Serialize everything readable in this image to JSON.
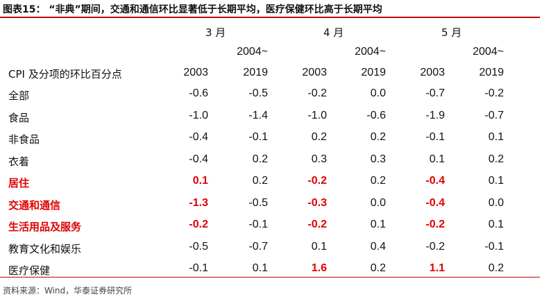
{
  "title": "图表15：  “非典”期间，交通和通信环比显著低于长期平均，医疗保健环比高于长期平均",
  "source": "资料来源：Wind，华泰证券研究所",
  "months": [
    "3 月",
    "4 月",
    "5 月"
  ],
  "header": {
    "row_label": "CPI 及分项的环比百分点",
    "col_a": "2003",
    "col_b_top": "2004~",
    "col_b": "2019"
  },
  "rows": [
    {
      "label": "全部",
      "v": [
        "-0.6",
        "-0.5",
        "-0.2",
        "0.0",
        "-0.7",
        "-0.2"
      ],
      "hl": false
    },
    {
      "label": "食品",
      "v": [
        "-1.0",
        "-1.4",
        "-1.0",
        "-0.6",
        "-1.9",
        "-0.7"
      ],
      "hl": false
    },
    {
      "label": "非食品",
      "v": [
        "-0.4",
        "-0.1",
        "0.2",
        "0.2",
        "-0.1",
        "0.1"
      ],
      "hl": false
    },
    {
      "label": "衣着",
      "v": [
        "-0.4",
        "0.2",
        "0.3",
        "0.3",
        "0.1",
        "0.2"
      ],
      "hl": false
    },
    {
      "label": "居住",
      "v": [
        "0.1",
        "0.2",
        "-0.2",
        "0.2",
        "-0.4",
        "0.1"
      ],
      "hl": true
    },
    {
      "label": "交通和通信",
      "v": [
        "-1.3",
        "-0.5",
        "-0.3",
        "0.0",
        "-0.4",
        "0.0"
      ],
      "hl": true
    },
    {
      "label": "生活用品及服务",
      "v": [
        "-0.2",
        "-0.1",
        "-0.2",
        "0.1",
        "-0.2",
        "0.1"
      ],
      "hl": true
    },
    {
      "label": "教育文化和娱乐",
      "v": [
        "-0.5",
        "-0.7",
        "0.1",
        "0.4",
        "-0.2",
        "-0.1"
      ],
      "hl": false
    },
    {
      "label": "医疗保健",
      "v": [
        "-0.1",
        "0.1",
        "1.6",
        "0.2",
        "1.1",
        "0.2"
      ],
      "hl": false,
      "red_cols": [
        2,
        4
      ]
    }
  ],
  "colors": {
    "accent": "#e00000",
    "rule": "#c00000"
  }
}
